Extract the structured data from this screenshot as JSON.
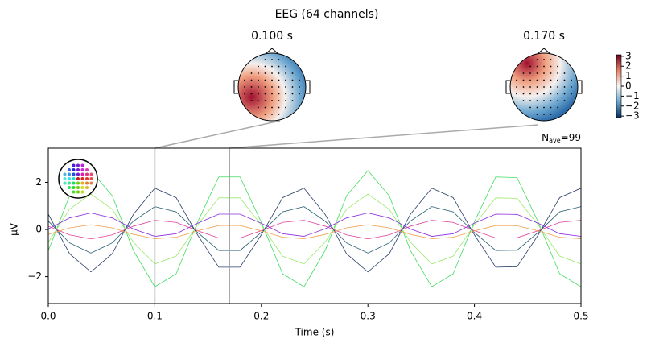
{
  "chart_data": {
    "type": "line",
    "title": "EEG (64 channels)",
    "xlabel": "Time (s)",
    "ylabel": "µV",
    "x": [
      0,
      0.02,
      0.04,
      0.06,
      0.08,
      0.1,
      0.12,
      0.14,
      0.16,
      0.18,
      0.2,
      0.22,
      0.24,
      0.26,
      0.28,
      0.3,
      0.32,
      0.34,
      0.36,
      0.38,
      0.4,
      0.42,
      0.44,
      0.46,
      0.48,
      0.5
    ],
    "series": [
      {
        "color": "#3ddc5c",
        "values": [
          -0.9,
          1.43,
          2.5,
          1.43,
          -0.9,
          -2.43,
          -1.88,
          0.3,
          2.23,
          2.23,
          0.3,
          -1.88,
          -2.43,
          -0.88,
          1.43,
          2.5,
          1.43,
          -0.9,
          -2.43,
          -1.88,
          0.33,
          2.23,
          2.2,
          0.3,
          -1.88,
          -2.43
        ]
      },
      {
        "color": "#9be86a",
        "values": [
          -0.54,
          0.86,
          1.5,
          0.86,
          -0.54,
          -1.46,
          -1.13,
          0.18,
          1.34,
          1.34,
          0.18,
          -1.13,
          -1.46,
          -0.53,
          0.86,
          1.5,
          0.86,
          -0.54,
          -1.46,
          -1.13,
          0.2,
          1.34,
          1.32,
          0.18,
          -1.13,
          -1.46
        ]
      },
      {
        "color": "#2b3f6b",
        "values": [
          0.65,
          -1.03,
          -1.8,
          -1.03,
          0.65,
          1.75,
          1.35,
          -0.22,
          -1.6,
          -1.6,
          -0.22,
          1.35,
          1.75,
          0.63,
          -1.03,
          -1.8,
          -1.03,
          0.65,
          1.75,
          1.35,
          -0.23,
          -1.6,
          -1.58,
          -0.22,
          1.35,
          1.75
        ]
      },
      {
        "color": "#1f5a6e",
        "values": [
          0.36,
          -0.57,
          -1,
          -0.57,
          0.36,
          0.97,
          0.75,
          -0.12,
          -0.89,
          -0.89,
          -0.12,
          0.75,
          0.97,
          0.35,
          -0.57,
          -1,
          -0.57,
          0.36,
          0.97,
          0.75,
          -0.13,
          -0.89,
          -0.88,
          -0.12,
          0.75,
          0.97
        ]
      },
      {
        "color": "#8a2be2",
        "values": [
          0.02,
          0.49,
          0.7,
          0.49,
          0.02,
          -0.29,
          -0.18,
          0.26,
          0.65,
          0.65,
          0.26,
          -0.18,
          -0.29,
          0.03,
          0.49,
          0.7,
          0.49,
          0.02,
          -0.29,
          -0.18,
          0.27,
          0.65,
          0.64,
          0.26,
          -0.18,
          -0.29
        ]
      },
      {
        "color": "#e0409a",
        "values": [
          0.14,
          -0.23,
          -0.4,
          -0.23,
          0.14,
          0.39,
          0.3,
          -0.05,
          -0.36,
          -0.36,
          -0.05,
          0.3,
          0.39,
          0.14,
          -0.23,
          -0.4,
          -0.23,
          0.14,
          0.39,
          0.3,
          -0.05,
          -0.36,
          -0.35,
          -0.05,
          0.3,
          0.39
        ]
      },
      {
        "color": "#f0a050",
        "values": [
          -0.21,
          0.07,
          0.2,
          0.07,
          -0.21,
          -0.39,
          -0.33,
          -0.06,
          0.17,
          0.17,
          -0.06,
          -0.33,
          -0.39,
          -0.21,
          0.07,
          0.2,
          0.07,
          -0.21,
          -0.39,
          -0.33,
          -0.06,
          0.17,
          0.16,
          -0.06,
          -0.33,
          -0.39
        ]
      }
    ],
    "xlim": [
      0,
      0.5
    ],
    "ylim": [
      -3.14,
      3.45
    ],
    "xticks": [
      {
        "value": 0,
        "label": "0.0"
      },
      0.1,
      0.2,
      0.3,
      0.4,
      0.5
    ],
    "yticks": [
      {
        "value": -2,
        "label": "−2"
      },
      0,
      2
    ],
    "topomaps": [
      {
        "time": 0.1,
        "label": "0.100 s"
      },
      {
        "time": 0.17,
        "label": "0.170 s"
      }
    ],
    "nave": {
      "symbol": "N",
      "subscript": "ave",
      "text": "=99"
    },
    "colorbar": {
      "lim": [
        -3.15,
        3.15
      ],
      "ticks": [
        3,
        2,
        1,
        0,
        {
          "value": -1,
          "label": "−1"
        },
        {
          "value": -2,
          "label": "−2"
        },
        {
          "value": -3,
          "label": "−3"
        }
      ]
    }
  }
}
